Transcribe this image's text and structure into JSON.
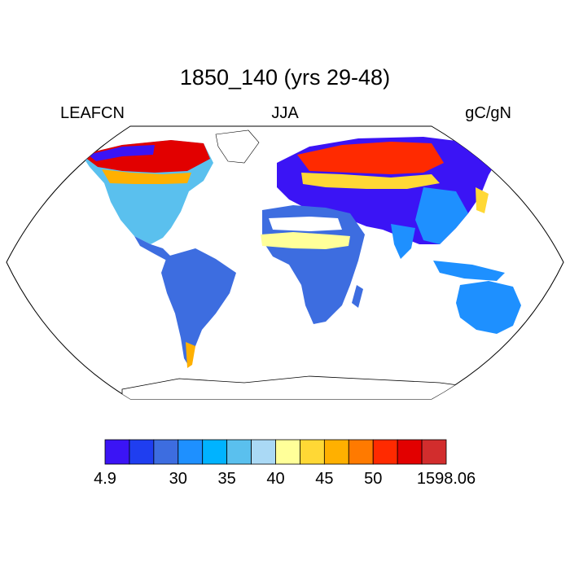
{
  "title": "1850_140 (yrs 29-48)",
  "left_label": "LEAFCN",
  "center_label": "JJA",
  "right_label": "gC/gN",
  "colorbar": {
    "colors": [
      "#3b14f5",
      "#1f3ef0",
      "#3d6de0",
      "#1e90ff",
      "#00b3ff",
      "#5ac0ee",
      "#aad9f5",
      "#ffff99",
      "#ffd835",
      "#ffb000",
      "#ff7a00",
      "#ff2a00",
      "#e20000",
      "#d22d2d"
    ],
    "labels": [
      "4.9",
      "30",
      "35",
      "40",
      "45",
      "50",
      "1598.06"
    ]
  }
}
